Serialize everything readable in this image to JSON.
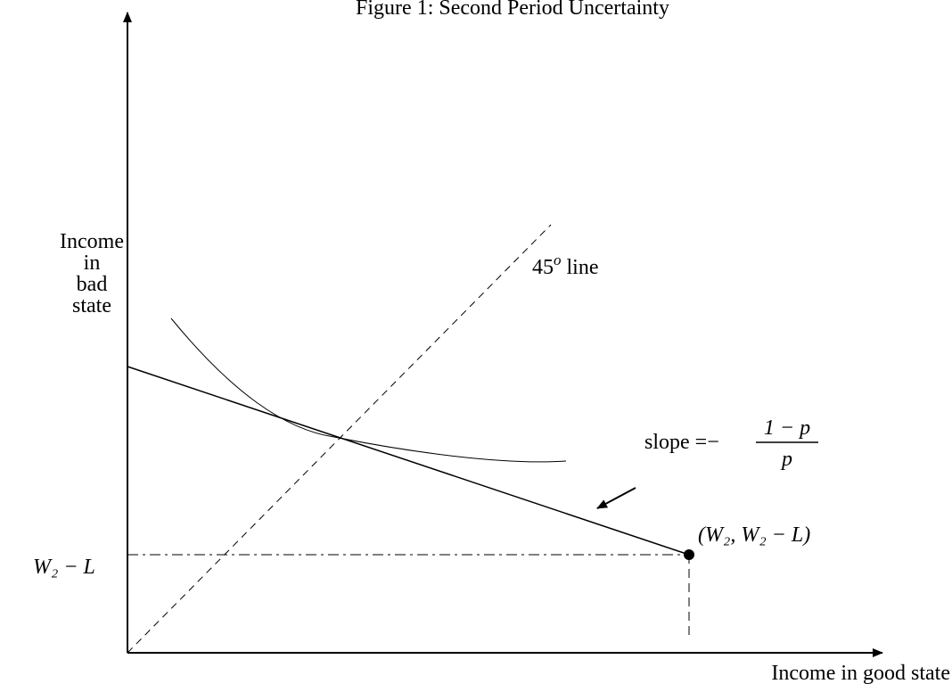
{
  "title": "Figure 1: Second Period Uncertainty",
  "axes": {
    "y_label": [
      "Income",
      "in",
      "bad",
      "state"
    ],
    "x_label": "Income in good state"
  },
  "labels": {
    "line_45": {
      "number": "45",
      "superscript": "o",
      "text": "line"
    },
    "slope": {
      "prefix": "slope =−",
      "numerator": "1 − p",
      "denominator": "p"
    },
    "endowment": "(W₂, W₂ − L)",
    "y_level": "W₂ − L"
  }
}
